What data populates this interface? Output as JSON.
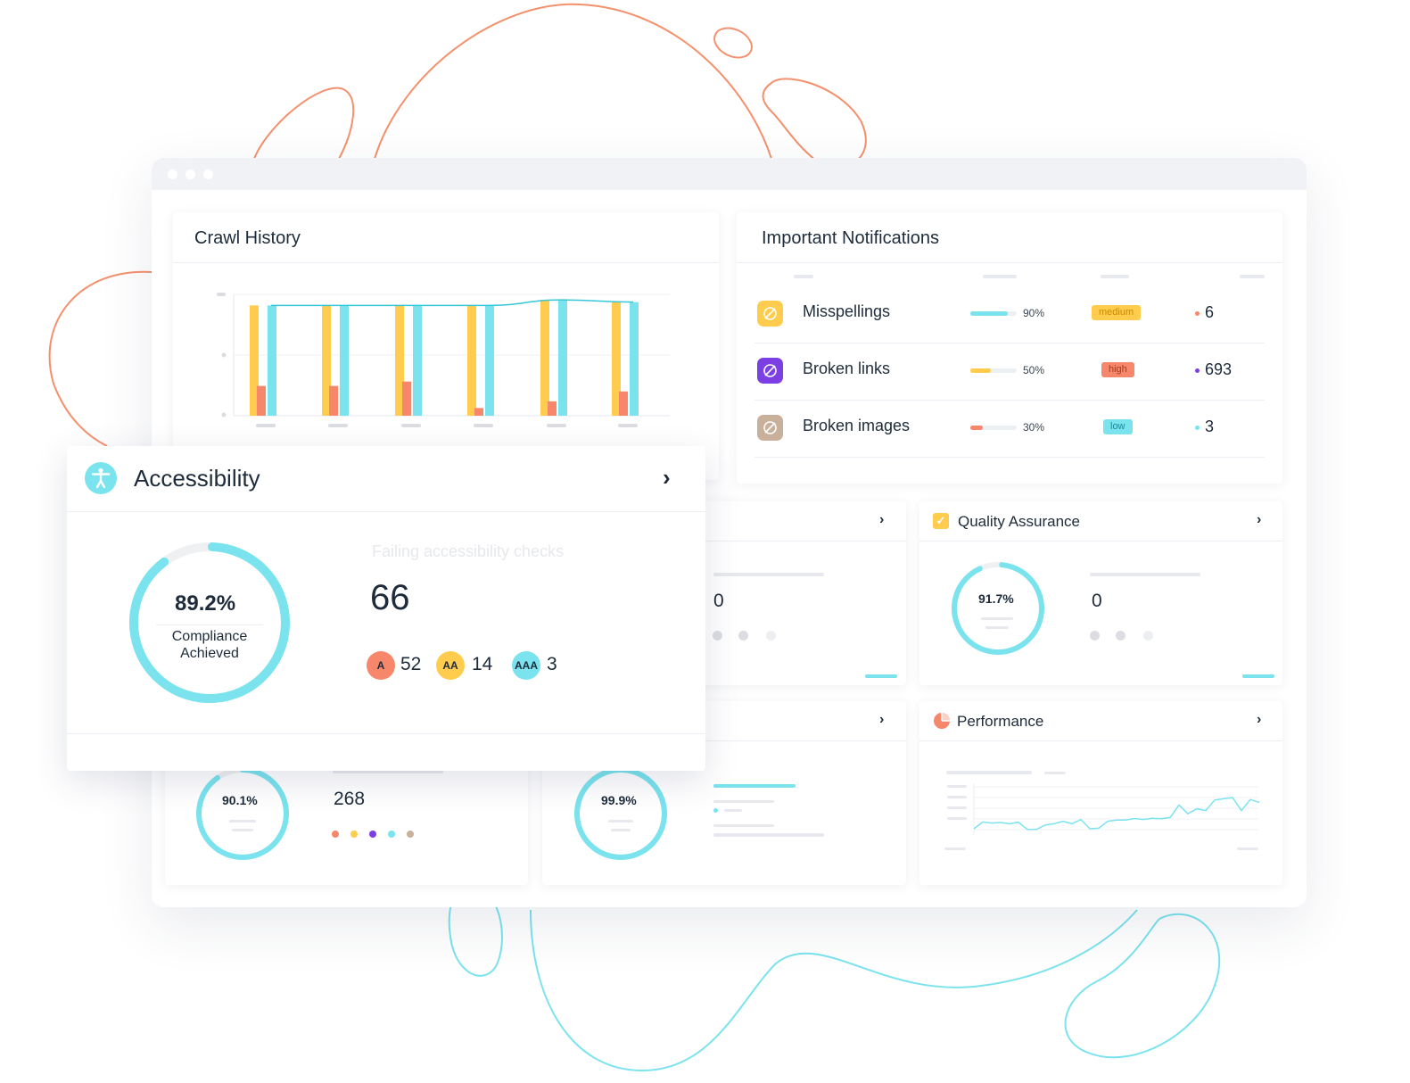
{
  "colors": {
    "cyan": "#7ae3ee",
    "yellow": "#ffcc4d",
    "salmon": "#f6876a",
    "purple": "#7b3fe4",
    "tan": "#c8b09a",
    "orange_line": "#f4906c"
  },
  "crawl_history": {
    "title": "Crawl History",
    "chart_data": {
      "type": "bar",
      "categories": [
        "",
        "",
        "",
        "",
        "",
        ""
      ],
      "series": [
        {
          "color": "#ffcc4d",
          "values": [
            1.0,
            1.0,
            1.0,
            1.0,
            1.05,
            1.03
          ]
        },
        {
          "color": "#f6876a",
          "values": [
            0.27,
            0.27,
            0.31,
            0.07,
            0.13,
            0.22
          ]
        },
        {
          "color": "#7ae3ee",
          "values": [
            1.0,
            1.0,
            1.0,
            1.0,
            1.05,
            1.03
          ]
        }
      ],
      "line": {
        "color": "#37c6d8",
        "values": [
          1.0,
          1.0,
          1.0,
          1.0,
          1.05,
          1.03
        ]
      },
      "ylim": [
        0,
        1.1
      ]
    }
  },
  "notifications": {
    "title": "Important Notifications",
    "rows": [
      {
        "label": "Misspellings",
        "icon": "spellcheck-icon",
        "pct": "90%",
        "fill": 0.9,
        "fill_color": "#7ae3ee",
        "badge": "medium",
        "badge_bg": "#ffcc4d",
        "badge_fg": "#c98a00",
        "count": "6",
        "dot": "#f6876a",
        "icon_bg": "#ffcc4d"
      },
      {
        "label": "Broken links",
        "icon": "broken-link-icon",
        "pct": "50%",
        "fill": 0.5,
        "fill_color": "#ffcc4d",
        "badge": "high",
        "badge_bg": "#f6876a",
        "badge_fg": "#a33a1e",
        "count": "693",
        "dot": "#7b3fe4",
        "icon_bg": "#7b3fe4"
      },
      {
        "label": "Broken images",
        "icon": "broken-image-icon",
        "pct": "30%",
        "fill": 0.3,
        "fill_color": "#f6876a",
        "badge": "low",
        "badge_bg": "#7ae3ee",
        "badge_fg": "#1b8a99",
        "count": "3",
        "dot": "#7ae3ee",
        "icon_bg": "#c8b09a"
      }
    ]
  },
  "accessibility": {
    "title": "Accessibility",
    "score": "89.2%",
    "score_value": 0.892,
    "score_caption_1": "Compliance",
    "score_caption_2": "Achieved",
    "failing_label": "Failing accessibility checks",
    "failing_count": "66",
    "levels": [
      {
        "label": "A",
        "count": "52",
        "color": "#f6876a"
      },
      {
        "label": "AA",
        "count": "14",
        "color": "#ffcc4d"
      },
      {
        "label": "AAA",
        "count": "3",
        "color": "#7ae3ee"
      }
    ]
  },
  "hidden_card": {
    "value": "0"
  },
  "quality_assurance": {
    "title": "Quality Assurance",
    "score": "91.7%",
    "score_value": 0.917,
    "value": "0"
  },
  "bottom_left": {
    "score": "90.1%",
    "score_value": 0.901,
    "value": "268",
    "dots": [
      "#f6876a",
      "#ffcc4d",
      "#7b3fe4",
      "#7ae3ee",
      "#c8b09a"
    ]
  },
  "bottom_middle": {
    "score": "99.9%",
    "score_value": 0.999
  },
  "performance": {
    "title": "Performance",
    "chart_data": {
      "type": "line",
      "color": "#7ae3ee",
      "values": [
        0.25,
        0.52,
        0.48,
        0.5,
        0.45,
        0.51,
        0.22,
        0.22,
        0.4,
        0.45,
        0.55,
        0.45,
        0.62,
        0.25,
        0.27,
        0.55,
        0.6,
        0.6,
        0.66,
        0.62,
        0.67,
        0.65,
        0.7,
        1.2,
        0.85,
        1.05,
        0.98,
        1.4,
        1.45,
        1.5,
        0.98,
        1.42,
        1.3
      ],
      "ylim": [
        0,
        2
      ]
    }
  }
}
